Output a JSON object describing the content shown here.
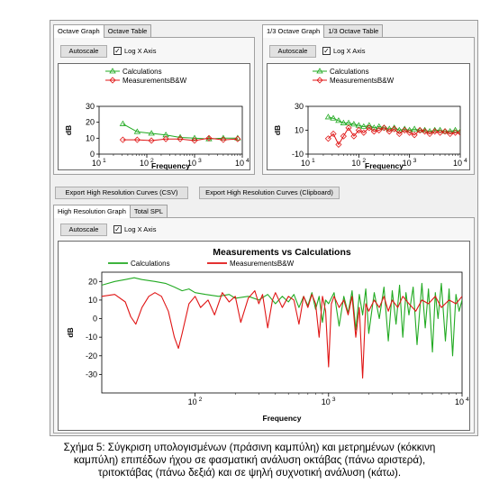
{
  "top_left": {
    "tabs": [
      {
        "label": "Octave Graph"
      },
      {
        "label": "Octave Table"
      }
    ],
    "autoscale_label": "Autoscale",
    "logx_label": "Log X Axis",
    "logx_checked": true
  },
  "top_right": {
    "tabs": [
      {
        "label": "1/3 Octave Graph"
      },
      {
        "label": "1/3 Octave Table"
      }
    ],
    "autoscale_label": "Autoscale",
    "logx_label": "Log X Axis",
    "logx_checked": true
  },
  "export": {
    "csv_label": "Export High Resolution Curves (CSV)",
    "clipboard_label": "Export High Resolution Curves (Clipboard)"
  },
  "bottom": {
    "tabs": [
      {
        "label": "High Resolution Graph"
      },
      {
        "label": "Total SPL"
      }
    ],
    "autoscale_label": "Autoscale",
    "logx_label": "Log X Axis",
    "logx_checked": true
  },
  "colors": {
    "calc": "#22aa22",
    "meas": "#e01515"
  },
  "check_glyph": "✓",
  "chart_data": [
    {
      "type": "line",
      "id": "octave",
      "title": "",
      "xlabel": "Frequency",
      "ylabel": "dB",
      "xscale": "log",
      "xlim": [
        10,
        10000
      ],
      "ylim": [
        0,
        30
      ],
      "yticks": [
        "0",
        "10",
        "20",
        "30"
      ],
      "xticks": [
        {
          "base": "10",
          "exp": "1"
        },
        {
          "base": "10",
          "exp": "2"
        },
        {
          "base": "10",
          "exp": "3"
        },
        {
          "base": "10",
          "exp": "4"
        }
      ],
      "legend_position": "top-left",
      "series": [
        {
          "name": "Calculations",
          "color": "#22aa22",
          "marker": "triangle",
          "x": [
            31.5,
            63,
            125,
            250,
            500,
            1000,
            2000,
            4000,
            8000
          ],
          "y": [
            19,
            14,
            13,
            12,
            10.5,
            10,
            9.5,
            10,
            10
          ]
        },
        {
          "name": "MeasurementsB&W",
          "color": "#e01515",
          "marker": "diamond",
          "x": [
            31.5,
            63,
            125,
            250,
            500,
            1000,
            2000,
            4000,
            8000
          ],
          "y": [
            9,
            9,
            8.5,
            9.5,
            9.5,
            8.5,
            10,
            9,
            9.5
          ]
        }
      ]
    },
    {
      "type": "line",
      "id": "third_octave",
      "title": "",
      "xlabel": "Frequency",
      "ylabel": "dB",
      "xscale": "log",
      "xlim": [
        10,
        10000
      ],
      "ylim": [
        -10,
        30
      ],
      "yticks": [
        "-10",
        "10",
        "30"
      ],
      "yvals": [
        -10,
        10,
        30
      ],
      "xticks": [
        {
          "base": "10",
          "exp": "1"
        },
        {
          "base": "10",
          "exp": "2"
        },
        {
          "base": "10",
          "exp": "3"
        },
        {
          "base": "10",
          "exp": "4"
        }
      ],
      "legend_position": "top-left",
      "series": [
        {
          "name": "Calculations",
          "color": "#22aa22",
          "marker": "triangle",
          "x": [
            25,
            31.5,
            40,
            50,
            63,
            80,
            100,
            125,
            160,
            200,
            250,
            315,
            400,
            500,
            630,
            800,
            1000,
            1250,
            1600,
            2000,
            2500,
            3150,
            4000,
            5000,
            6300,
            8000,
            10000
          ],
          "y": [
            21,
            20,
            18,
            16,
            16,
            15,
            14,
            13,
            14,
            12,
            13,
            12,
            11,
            12,
            10,
            11,
            10,
            11,
            10,
            10,
            9,
            10,
            10,
            9,
            9,
            10,
            9
          ]
        },
        {
          "name": "MeasurementsB&W",
          "color": "#e01515",
          "marker": "diamond",
          "x": [
            25,
            31.5,
            40,
            50,
            63,
            80,
            100,
            125,
            160,
            200,
            250,
            315,
            400,
            500,
            630,
            800,
            1000,
            1250,
            1600,
            2000,
            2500,
            3150,
            4000,
            5000,
            6300,
            8000,
            10000
          ],
          "y": [
            3,
            7,
            -2,
            5,
            12,
            5,
            10,
            8,
            12,
            9,
            10,
            12,
            9,
            11,
            7,
            10,
            8,
            6,
            10,
            9,
            7,
            9,
            8,
            9,
            7,
            8,
            8
          ]
        }
      ]
    },
    {
      "type": "line",
      "id": "high_res",
      "title": "Measurements vs Calculations",
      "xlabel": "Frequency",
      "ylabel": "dB",
      "xscale": "log",
      "xlim": [
        20,
        10000
      ],
      "ylim": [
        -40,
        25
      ],
      "yticks": [
        "20",
        "10",
        "0",
        "-10",
        "-20",
        "-30"
      ],
      "yvals": [
        20,
        10,
        0,
        -10,
        -20,
        -30
      ],
      "xticks": [
        {
          "base": "10",
          "exp": "2"
        },
        {
          "base": "10",
          "exp": "3"
        },
        {
          "base": "10",
          "exp": "4"
        }
      ],
      "legend_position": "top",
      "series": [
        {
          "name": "Calculations",
          "color": "#22aa22",
          "x": [
            20,
            25,
            30,
            35,
            40,
            50,
            60,
            70,
            80,
            90,
            100,
            120,
            150,
            180,
            200,
            250,
            300,
            350,
            400,
            450,
            500,
            550,
            600,
            650,
            700,
            750,
            800,
            850,
            900,
            950,
            1000,
            1100,
            1200,
            1300,
            1400,
            1500,
            1600,
            1700,
            1800,
            1900,
            2000,
            2200,
            2400,
            2600,
            2800,
            3000,
            3200,
            3400,
            3600,
            3800,
            4000,
            4300,
            4600,
            5000,
            5300,
            5600,
            6000,
            6300,
            6600,
            7000,
            7500,
            8000,
            8500,
            9000,
            9500,
            10000
          ],
          "y": [
            18,
            20,
            21,
            22,
            21,
            20,
            19,
            17,
            15,
            16,
            14,
            13,
            12,
            13,
            11,
            12,
            10,
            13,
            8,
            12,
            9,
            13,
            6,
            12,
            7,
            14,
            5,
            12,
            -2,
            10,
            8,
            14,
            -4,
            12,
            3,
            15,
            -6,
            13,
            2,
            16,
            -8,
            14,
            0,
            17,
            -12,
            15,
            -3,
            18,
            -10,
            14,
            2,
            17,
            -14,
            19,
            -5,
            16,
            -18,
            14,
            0,
            19,
            -12,
            16,
            -20,
            13,
            4,
            10
          ]
        },
        {
          "name": "MeasurementsB&W",
          "color": "#e01515",
          "x": [
            20,
            25,
            30,
            33,
            36,
            40,
            45,
            50,
            56,
            63,
            70,
            75,
            80,
            90,
            100,
            110,
            125,
            140,
            160,
            180,
            200,
            220,
            250,
            280,
            300,
            320,
            350,
            380,
            400,
            450,
            500,
            550,
            600,
            650,
            700,
            750,
            800,
            850,
            900,
            950,
            1000,
            1050,
            1100,
            1200,
            1300,
            1400,
            1500,
            1600,
            1700,
            1800,
            1900,
            2000,
            2200,
            2400,
            2600,
            2800,
            3000,
            3300,
            3600,
            4000,
            4500,
            5000,
            5600,
            6300,
            7000,
            8000,
            9000,
            10000
          ],
          "y": [
            12,
            13,
            9,
            1,
            -3,
            6,
            12,
            14,
            12,
            4,
            -10,
            -16,
            -8,
            8,
            12,
            6,
            10,
            2,
            14,
            9,
            12,
            -2,
            11,
            15,
            8,
            13,
            -5,
            10,
            14,
            6,
            12,
            10,
            -3,
            12,
            6,
            13,
            8,
            -10,
            12,
            4,
            -26,
            8,
            12,
            6,
            10,
            2,
            12,
            -10,
            6,
            -32,
            8,
            4,
            10,
            6,
            12,
            4,
            10,
            6,
            12,
            8,
            4,
            10,
            8,
            12,
            6,
            10,
            8,
            12
          ]
        }
      ]
    }
  ],
  "caption": {
    "lines": [
      "Σχήμα 5: Σύγκριση υπολογισμένων (πράσινη καμπύλη) και μετρημένων (κόκκινη",
      "καμπύλη) επιπέδων ήχου σε φασματική ανάλυση οκτάβας (πάνω αριστερά),",
      "τριτοκτάβας (πάνω δεξιά) και σε ψηλή συχνοτική ανάλυση (κάτω)."
    ]
  }
}
